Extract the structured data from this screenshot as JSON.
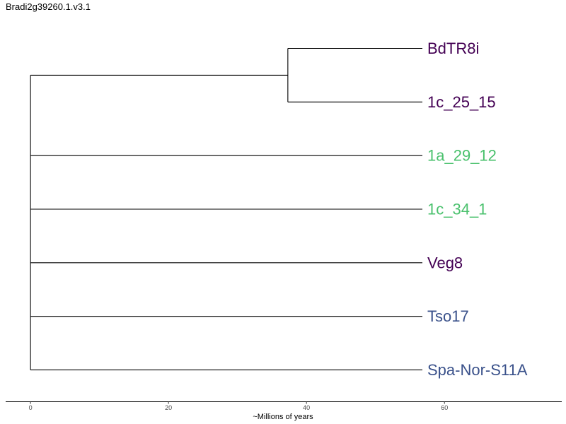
{
  "title": "Bradi2g39260.1.v3.1",
  "chart_data": {
    "type": "phylogenetic-tree",
    "title": "Bradi2g39260.1.v3.1",
    "xlabel": "~Millions of years",
    "x_ticks": [
      0,
      20,
      40,
      60
    ],
    "xlim": [
      -3.6,
      77
    ],
    "tips": [
      {
        "label": "BdTR8i",
        "color": "#440154"
      },
      {
        "label": "1c_25_15",
        "color": "#440154"
      },
      {
        "label": "1a_29_12",
        "color": "#4ac16d"
      },
      {
        "label": "1c_34_1",
        "color": "#4ac16d"
      },
      {
        "label": "Veg8",
        "color": "#440154"
      },
      {
        "label": "Tso17",
        "color": "#3b528b"
      },
      {
        "label": "Spa-Nor-S11A",
        "color": "#3b528b"
      }
    ],
    "branches": [
      {
        "child": "node:BdTR8i+1c_25_15",
        "parent_x": 0,
        "x": 37.3
      },
      {
        "child": "tip:BdTR8i",
        "parent_x": 37.3,
        "x": 56.8
      },
      {
        "child": "tip:1c_25_15",
        "parent_x": 37.3,
        "x": 56.8
      },
      {
        "child": "tip:1a_29_12",
        "parent_x": 0,
        "x": 56.8
      },
      {
        "child": "tip:1c_34_1",
        "parent_x": 0,
        "x": 56.8
      },
      {
        "child": "tip:Veg8",
        "parent_x": 0,
        "x": 56.8
      },
      {
        "child": "tip:Tso17",
        "parent_x": 0,
        "x": 56.8
      },
      {
        "child": "tip:Spa-Nor-S11A",
        "parent_x": 0,
        "x": 56.8
      }
    ]
  }
}
